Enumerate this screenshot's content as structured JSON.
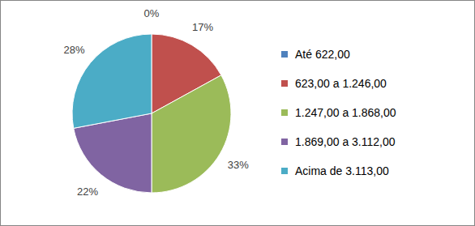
{
  "chart_data": {
    "type": "pie",
    "categories": [
      "Até 622,00",
      "623,00 a 1.246,00",
      "1.247,00 a 1.868,00",
      "1.869,00 a 3.112,00",
      "Acima de 3.113,00"
    ],
    "values": [
      0,
      17,
      33,
      22,
      28
    ],
    "value_labels": [
      "0%",
      "17%",
      "33%",
      "22%",
      "28%"
    ],
    "colors": [
      "#4f81bd",
      "#c0504d",
      "#9bbb59",
      "#8064a2",
      "#4bacc6"
    ],
    "data_labels": true,
    "legend": "right"
  }
}
